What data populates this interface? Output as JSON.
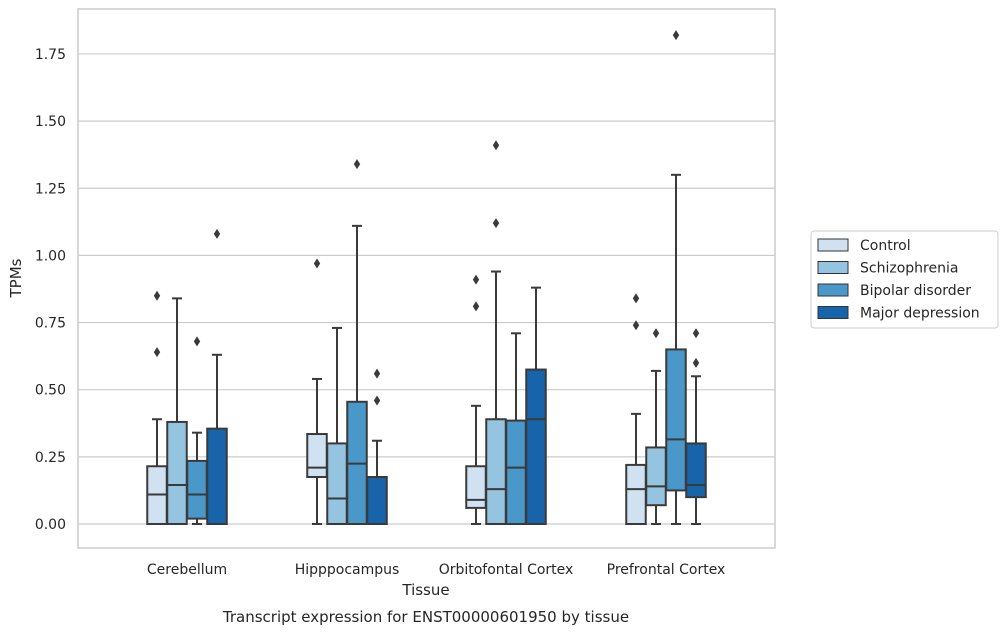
{
  "caption": "Transcript expression for ENST00000601950 by tissue",
  "chart_data": {
    "type": "box",
    "xlabel": "Tissue",
    "ylabel": "TPMs",
    "ylim": [
      -0.09,
      1.92
    ],
    "yticks": [
      "0.00",
      "0.25",
      "0.50",
      "0.75",
      "1.00",
      "1.25",
      "1.50",
      "1.75"
    ],
    "ytick_values": [
      0,
      0.25,
      0.5,
      0.75,
      1.0,
      1.25,
      1.5,
      1.75
    ],
    "grid": true,
    "legend_position": "right",
    "categories": [
      "Cerebellum",
      "Hipppocampus",
      "Orbitofontal Cortex",
      "Prefrontal Cortex"
    ],
    "series": [
      {
        "name": "Control",
        "color": "#d0e1f2",
        "boxes": [
          {
            "whislo": 0.0,
            "q1": 0.0,
            "med": 0.11,
            "q3": 0.215,
            "whishi": 0.39,
            "fliers": [
              0.64,
              0.85
            ]
          },
          {
            "whislo": 0.0,
            "q1": 0.175,
            "med": 0.21,
            "q3": 0.335,
            "whishi": 0.54,
            "fliers": [
              0.97
            ]
          },
          {
            "whislo": 0.0,
            "q1": 0.06,
            "med": 0.09,
            "q3": 0.215,
            "whishi": 0.44,
            "fliers": [
              0.81,
              0.91
            ]
          },
          {
            "whislo": 0.0,
            "q1": 0.0,
            "med": 0.13,
            "q3": 0.22,
            "whishi": 0.41,
            "fliers": [
              0.74,
              0.84
            ]
          }
        ]
      },
      {
        "name": "Schizophrenia",
        "color": "#94c4df",
        "boxes": [
          {
            "whislo": 0.0,
            "q1": 0.0,
            "med": 0.145,
            "q3": 0.38,
            "whishi": 0.84,
            "fliers": []
          },
          {
            "whislo": 0.0,
            "q1": 0.0,
            "med": 0.095,
            "q3": 0.3,
            "whishi": 0.73,
            "fliers": []
          },
          {
            "whislo": 0.0,
            "q1": 0.0,
            "med": 0.13,
            "q3": 0.39,
            "whishi": 0.94,
            "fliers": [
              1.12,
              1.41
            ]
          },
          {
            "whislo": 0.0,
            "q1": 0.07,
            "med": 0.14,
            "q3": 0.285,
            "whishi": 0.57,
            "fliers": [
              0.71
            ]
          }
        ]
      },
      {
        "name": "Bipolar disorder",
        "color": "#4a98c9",
        "boxes": [
          {
            "whislo": 0.0,
            "q1": 0.02,
            "med": 0.11,
            "q3": 0.235,
            "whishi": 0.34,
            "fliers": [
              0.68
            ]
          },
          {
            "whislo": 0.0,
            "q1": 0.0,
            "med": 0.225,
            "q3": 0.455,
            "whishi": 1.11,
            "fliers": [
              1.34
            ]
          },
          {
            "whislo": 0.0,
            "q1": 0.0,
            "med": 0.21,
            "q3": 0.385,
            "whishi": 0.71,
            "fliers": []
          },
          {
            "whislo": 0.0,
            "q1": 0.125,
            "med": 0.315,
            "q3": 0.65,
            "whishi": 1.3,
            "fliers": [
              1.82
            ]
          }
        ]
      },
      {
        "name": "Major depression",
        "color": "#1764ab",
        "boxes": [
          {
            "whislo": 0.0,
            "q1": 0.0,
            "med": 0.0,
            "q3": 0.355,
            "whishi": 0.63,
            "fliers": [
              1.08
            ]
          },
          {
            "whislo": 0.0,
            "q1": 0.0,
            "med": 0.0,
            "q3": 0.175,
            "whishi": 0.31,
            "fliers": [
              0.46,
              0.56
            ]
          },
          {
            "whislo": 0.0,
            "q1": 0.0,
            "med": 0.39,
            "q3": 0.575,
            "whishi": 0.88,
            "fliers": []
          },
          {
            "whislo": 0.0,
            "q1": 0.1,
            "med": 0.145,
            "q3": 0.3,
            "whishi": 0.55,
            "fliers": [
              0.6,
              0.71
            ]
          }
        ]
      }
    ]
  }
}
